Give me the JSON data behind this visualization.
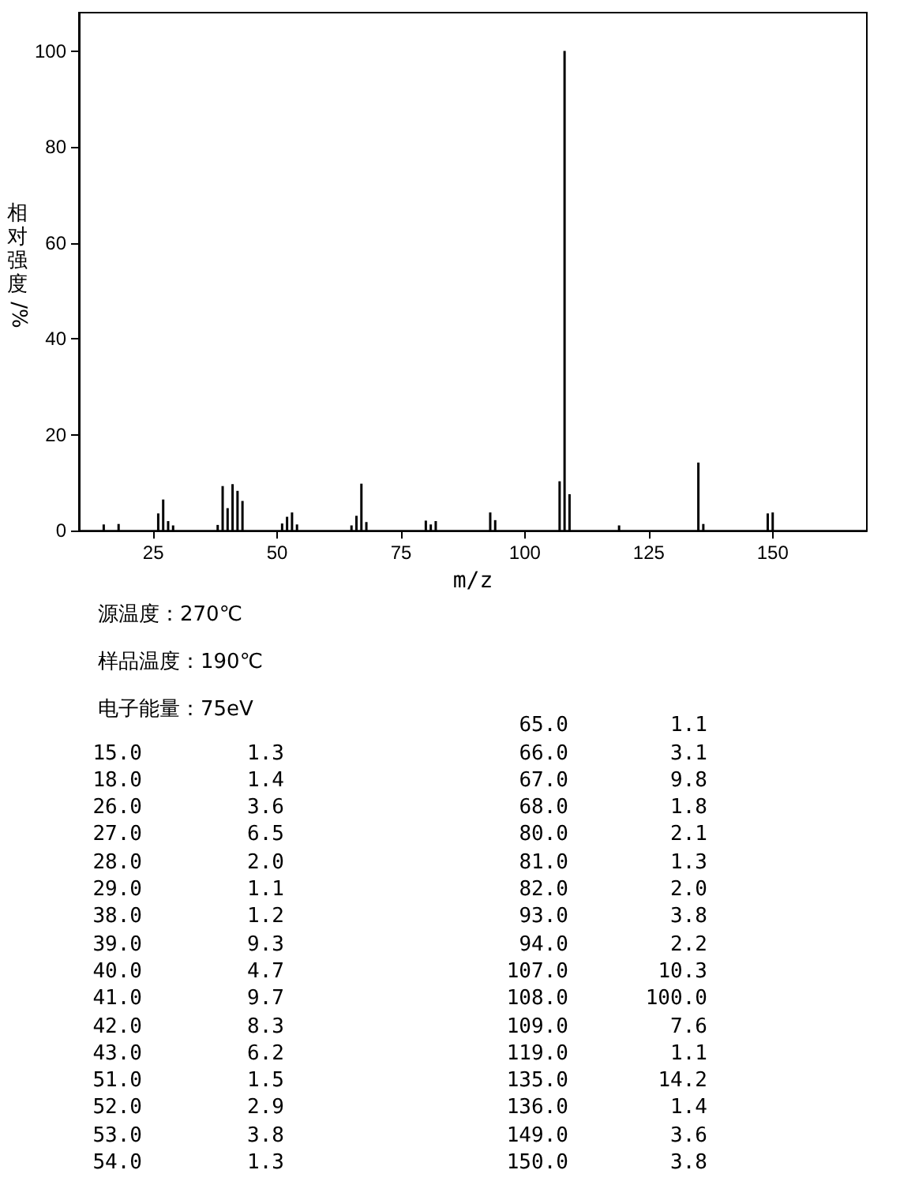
{
  "chart_data": [
    {
      "type": "bar",
      "xlabel": "m/z",
      "ylabel": "相对强度/%",
      "annotations": [
        "源温度：270℃",
        "样品温度：190℃",
        "电子能量：75eV"
      ],
      "x": [
        15,
        18,
        26,
        27,
        28,
        29,
        38,
        39,
        40,
        41,
        42,
        43,
        51,
        52,
        53,
        54,
        65,
        66,
        67,
        68,
        80,
        81,
        82,
        93,
        94,
        107,
        108,
        109,
        119,
        135,
        136,
        149,
        150
      ],
      "values": [
        1.3,
        1.4,
        3.6,
        6.5,
        2.0,
        1.1,
        1.2,
        9.3,
        4.7,
        9.7,
        8.3,
        6.2,
        1.5,
        2.9,
        3.8,
        1.3,
        1.1,
        3.1,
        9.8,
        1.8,
        2.1,
        1.3,
        2.0,
        3.8,
        2.2,
        10.3,
        100.0,
        7.6,
        1.1,
        14.2,
        1.4,
        3.6,
        3.8
      ],
      "color": "#000000",
      "xlim": [
        10,
        169
      ],
      "xticks": [
        25,
        50,
        75,
        100,
        125,
        150
      ],
      "ylim": [
        0,
        108
      ],
      "yticks": [
        0,
        20,
        40,
        60,
        80,
        100
      ],
      "grid": false
    },
    {
      "type": "other",
      "annotations": [
        "15.0",
        "1.3",
        "18.0",
        "1.4",
        "26.0",
        "3.6",
        "27.0",
        "6.5",
        "28.0",
        "2.0",
        "29.0",
        "1.1",
        "38.0",
        "1.2",
        "39.0",
        "9.3",
        "40.0",
        "4.7",
        "41.0",
        "9.7",
        "42.0",
        "8.3",
        "43.0",
        "6.2",
        "51.0",
        "1.5",
        "52.0",
        "2.9",
        "53.0",
        "3.8",
        "54.0",
        "1.3",
        "65.0",
        "1.1",
        "66.0",
        "3.1",
        "67.0",
        "9.8",
        "68.0",
        "1.8",
        "80.0",
        "2.1",
        "81.0",
        "1.3",
        "82.0",
        "2.0",
        "93.0",
        "3.8",
        "94.0",
        "2.2",
        "107.0",
        "10.3",
        "108.0",
        "100.0",
        "109.0",
        "7.6",
        "119.0",
        "1.1",
        "135.0",
        "14.2",
        "136.0",
        "1.4",
        "149.0",
        "3.6",
        "150.0",
        "3.8"
      ]
    }
  ]
}
